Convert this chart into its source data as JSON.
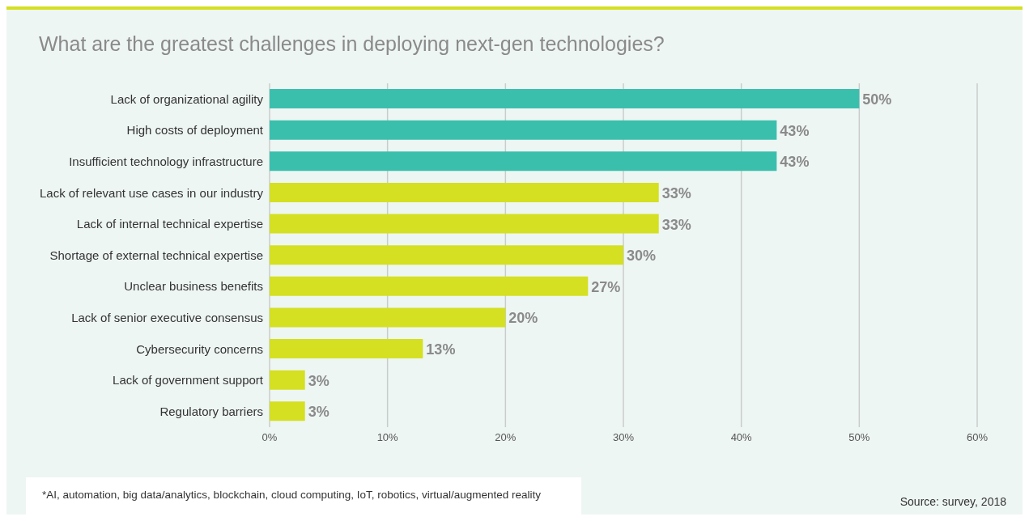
{
  "chart_data": {
    "type": "bar",
    "orientation": "horizontal",
    "title": "What are the greatest challenges in deploying next-gen technologies?",
    "categories": [
      "Lack of organizational agility",
      "High costs of deployment",
      "Insufficient technology infrastructure",
      "Lack of relevant use cases in our industry",
      "Lack of internal technical expertise",
      "Shortage of external technical expertise",
      "Unclear business benefits",
      "Lack of senior executive consensus",
      "Cybersecurity concerns",
      "Lack of government support",
      "Regulatory barriers"
    ],
    "values": [
      50,
      43,
      43,
      33,
      33,
      30,
      27,
      20,
      13,
      3,
      3
    ],
    "value_labels": [
      "50%",
      "43%",
      "43%",
      "33%",
      "33%",
      "30%",
      "27%",
      "20%",
      "13%",
      "3%",
      "3%"
    ],
    "colors": [
      "#3bbfad",
      "#3bbfad",
      "#3bbfad",
      "#d4e021",
      "#d4e021",
      "#d4e021",
      "#d4e021",
      "#d4e021",
      "#d4e021",
      "#d4e021",
      "#d4e021"
    ],
    "xlim": [
      0,
      60
    ],
    "xticks": [
      {
        "value": 0,
        "label": "0%"
      },
      {
        "value": 10,
        "label": "10%"
      },
      {
        "value": 20,
        "label": "20%"
      },
      {
        "value": 30,
        "label": "30%"
      },
      {
        "value": 40,
        "label": "40%"
      },
      {
        "value": 50,
        "label": "50%"
      },
      {
        "value": 60,
        "label": "60%"
      }
    ],
    "grid": "x",
    "legend": false,
    "annotations": [
      "*AI, automation, big data/analytics, blockchain, cloud computing, IoT, robotics, virtual/augmented reality",
      "Source: survey, 2018"
    ]
  }
}
